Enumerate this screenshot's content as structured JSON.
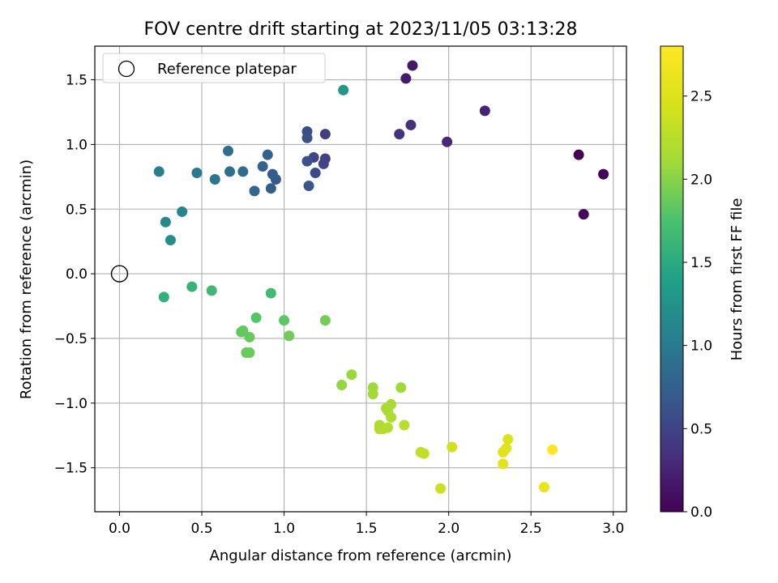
{
  "chart_data": {
    "type": "scatter",
    "title": "FOV centre drift starting at 2023/11/05 03:13:28",
    "xlabel": "Angular distance from reference (arcmin)",
    "ylabel": "Rotation from reference (arcmin)",
    "xlim": [
      -0.15,
      3.08
    ],
    "ylim": [
      -1.84,
      1.76
    ],
    "xticks": [
      "0.0",
      "0.5",
      "1.0",
      "1.5",
      "2.0",
      "2.5",
      "3.0"
    ],
    "yticks": [
      "−1.5",
      "−1.0",
      "−0.5",
      "0.0",
      "0.5",
      "1.0",
      "1.5"
    ],
    "grid": true,
    "legend": {
      "position": "upper-left",
      "entries": [
        "Reference platepar"
      ]
    },
    "reference_point": {
      "x": 0.0,
      "y": 0.0
    },
    "colorbar": {
      "label": "Hours from first FF file",
      "range": [
        0.0,
        2.8
      ],
      "ticks": [
        "0.0",
        "0.5",
        "1.0",
        "1.5",
        "2.0",
        "2.5"
      ],
      "colormap": "viridis"
    },
    "points": [
      {
        "x": 2.79,
        "y": 0.92,
        "c": 0.01
      },
      {
        "x": 2.94,
        "y": 0.77,
        "c": 0.03
      },
      {
        "x": 2.82,
        "y": 0.46,
        "c": 0.06
      },
      {
        "x": 1.78,
        "y": 1.61,
        "c": 0.16
      },
      {
        "x": 1.74,
        "y": 1.51,
        "c": 0.19
      },
      {
        "x": 2.22,
        "y": 1.26,
        "c": 0.26
      },
      {
        "x": 1.99,
        "y": 1.02,
        "c": 0.29
      },
      {
        "x": 1.77,
        "y": 1.15,
        "c": 0.33
      },
      {
        "x": 1.7,
        "y": 1.08,
        "c": 0.36
      },
      {
        "x": 1.25,
        "y": 1.08,
        "c": 0.45
      },
      {
        "x": 1.25,
        "y": 0.89,
        "c": 0.48
      },
      {
        "x": 1.24,
        "y": 0.85,
        "c": 0.5
      },
      {
        "x": 1.18,
        "y": 0.9,
        "c": 0.52
      },
      {
        "x": 1.19,
        "y": 0.78,
        "c": 0.55
      },
      {
        "x": 1.14,
        "y": 1.1,
        "c": 0.58
      },
      {
        "x": 1.14,
        "y": 1.05,
        "c": 0.6
      },
      {
        "x": 1.14,
        "y": 0.87,
        "c": 0.62
      },
      {
        "x": 1.15,
        "y": 0.68,
        "c": 0.65
      },
      {
        "x": 0.95,
        "y": 0.73,
        "c": 0.68
      },
      {
        "x": 0.93,
        "y": 0.77,
        "c": 0.7
      },
      {
        "x": 0.92,
        "y": 0.66,
        "c": 0.72
      },
      {
        "x": 0.9,
        "y": 0.92,
        "c": 0.74
      },
      {
        "x": 0.87,
        "y": 0.83,
        "c": 0.77
      },
      {
        "x": 0.82,
        "y": 0.64,
        "c": 0.8
      },
      {
        "x": 0.75,
        "y": 0.79,
        "c": 0.84
      },
      {
        "x": 0.66,
        "y": 0.95,
        "c": 0.88
      },
      {
        "x": 0.67,
        "y": 0.79,
        "c": 0.9
      },
      {
        "x": 0.58,
        "y": 0.73,
        "c": 0.95
      },
      {
        "x": 0.47,
        "y": 0.78,
        "c": 1.0
      },
      {
        "x": 0.24,
        "y": 0.79,
        "c": 1.05
      },
      {
        "x": 0.38,
        "y": 0.48,
        "c": 1.1
      },
      {
        "x": 0.28,
        "y": 0.4,
        "c": 1.15
      },
      {
        "x": 0.31,
        "y": 0.26,
        "c": 1.2
      },
      {
        "x": 1.36,
        "y": 1.42,
        "c": 1.3
      },
      {
        "x": 0.27,
        "y": -0.18,
        "c": 1.55
      },
      {
        "x": 0.44,
        "y": -0.1,
        "c": 1.6
      },
      {
        "x": 0.56,
        "y": -0.13,
        "c": 1.65
      },
      {
        "x": 0.92,
        "y": -0.15,
        "c": 1.68
      },
      {
        "x": 0.83,
        "y": -0.34,
        "c": 1.8
      },
      {
        "x": 1.0,
        "y": -0.36,
        "c": 1.82
      },
      {
        "x": 0.74,
        "y": -0.45,
        "c": 1.84
      },
      {
        "x": 0.75,
        "y": -0.44,
        "c": 1.85
      },
      {
        "x": 0.79,
        "y": -0.49,
        "c": 1.86
      },
      {
        "x": 0.77,
        "y": -0.61,
        "c": 1.87
      },
      {
        "x": 0.79,
        "y": -0.61,
        "c": 1.88
      },
      {
        "x": 1.03,
        "y": -0.48,
        "c": 1.9
      },
      {
        "x": 1.25,
        "y": -0.36,
        "c": 1.92
      },
      {
        "x": 1.35,
        "y": -0.86,
        "c": 2.05
      },
      {
        "x": 1.41,
        "y": -0.78,
        "c": 2.07
      },
      {
        "x": 1.54,
        "y": -0.88,
        "c": 2.1
      },
      {
        "x": 1.54,
        "y": -0.93,
        "c": 2.12
      },
      {
        "x": 1.71,
        "y": -0.88,
        "c": 2.1
      },
      {
        "x": 1.65,
        "y": -1.01,
        "c": 2.15
      },
      {
        "x": 1.62,
        "y": -1.04,
        "c": 2.15
      },
      {
        "x": 1.63,
        "y": -1.06,
        "c": 2.16
      },
      {
        "x": 1.65,
        "y": -1.11,
        "c": 2.18
      },
      {
        "x": 1.58,
        "y": -1.17,
        "c": 2.18
      },
      {
        "x": 1.58,
        "y": -1.2,
        "c": 2.2
      },
      {
        "x": 1.6,
        "y": -1.2,
        "c": 2.21
      },
      {
        "x": 1.63,
        "y": -1.19,
        "c": 2.22
      },
      {
        "x": 1.73,
        "y": -1.17,
        "c": 2.25
      },
      {
        "x": 1.83,
        "y": -1.38,
        "c": 2.3
      },
      {
        "x": 1.85,
        "y": -1.39,
        "c": 2.32
      },
      {
        "x": 2.02,
        "y": -1.34,
        "c": 2.4
      },
      {
        "x": 1.95,
        "y": -1.66,
        "c": 2.38
      },
      {
        "x": 2.36,
        "y": -1.28,
        "c": 2.5
      },
      {
        "x": 2.35,
        "y": -1.35,
        "c": 2.52
      },
      {
        "x": 2.33,
        "y": -1.38,
        "c": 2.53
      },
      {
        "x": 2.33,
        "y": -1.47,
        "c": 2.55
      },
      {
        "x": 2.58,
        "y": -1.65,
        "c": 2.6
      },
      {
        "x": 2.63,
        "y": -1.36,
        "c": 2.8
      }
    ]
  }
}
